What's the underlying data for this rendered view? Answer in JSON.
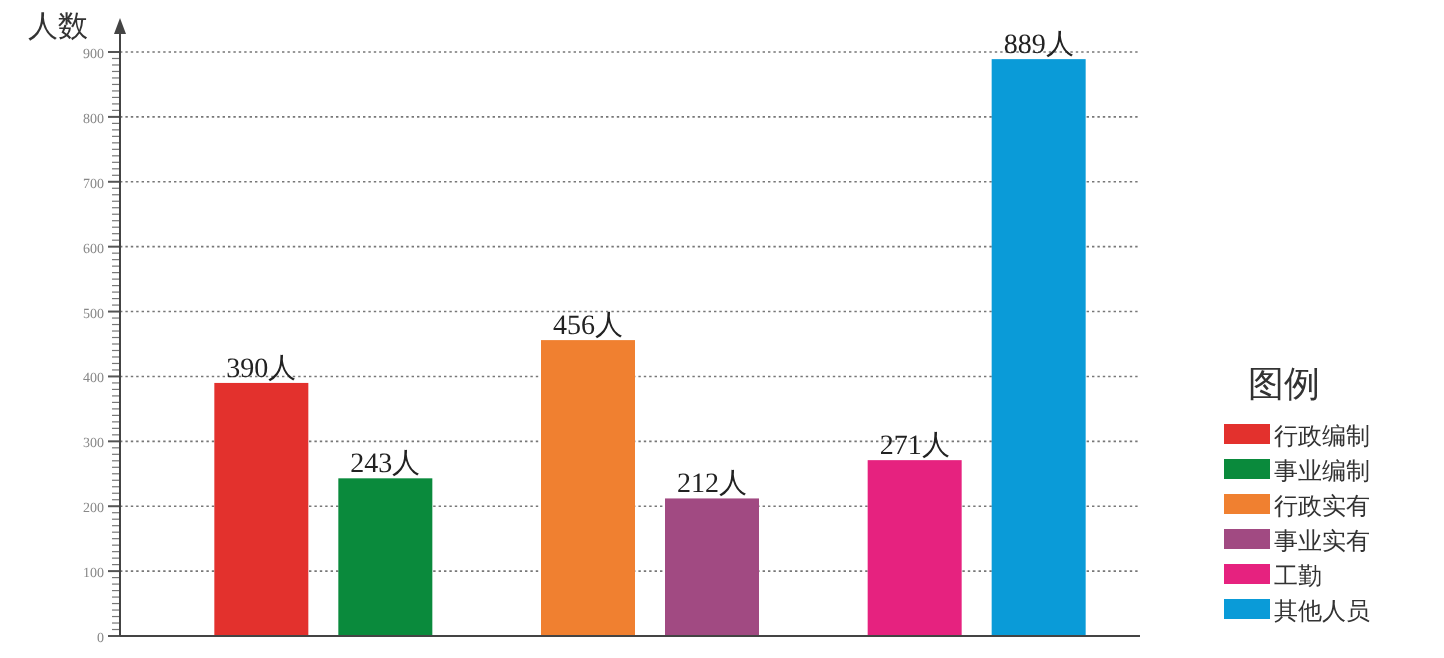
{
  "chart_data": {
    "type": "bar",
    "ylabel": "人数",
    "legend_title": "图例",
    "legend": "right",
    "grid": "y",
    "categories": [
      null,
      null,
      null
    ],
    "ylim": [
      0,
      900
    ],
    "yticks": [
      0,
      {
        "value": 10,
        "label": null
      },
      {
        "value": 20,
        "label": null
      },
      {
        "value": 30,
        "label": null
      },
      {
        "value": 40,
        "label": null
      },
      {
        "value": 50,
        "label": null
      },
      {
        "value": 60,
        "label": null
      },
      {
        "value": 70,
        "label": null
      },
      {
        "value": 80,
        "label": null
      },
      {
        "value": 90,
        "label": null
      },
      100,
      {
        "value": 110,
        "label": null
      },
      {
        "value": 120,
        "label": null
      },
      {
        "value": 130,
        "label": null
      },
      {
        "value": 140,
        "label": null
      },
      {
        "value": 150,
        "label": null
      },
      {
        "value": 160,
        "label": null
      },
      {
        "value": 170,
        "label": null
      },
      {
        "value": 180,
        "label": null
      },
      {
        "value": 190,
        "label": null
      },
      200,
      {
        "value": 210,
        "label": null
      },
      {
        "value": 220,
        "label": null
      },
      {
        "value": 230,
        "label": null
      },
      {
        "value": 240,
        "label": null
      },
      {
        "value": 250,
        "label": null
      },
      {
        "value": 260,
        "label": null
      },
      {
        "value": 270,
        "label": null
      },
      {
        "value": 280,
        "label": null
      },
      {
        "value": 290,
        "label": null
      },
      300,
      {
        "value": 310,
        "label": null
      },
      {
        "value": 320,
        "label": null
      },
      {
        "value": 330,
        "label": null
      },
      {
        "value": 340,
        "label": null
      },
      {
        "value": 350,
        "label": null
      },
      {
        "value": 360,
        "label": null
      },
      {
        "value": 370,
        "label": null
      },
      {
        "value": 380,
        "label": null
      },
      {
        "value": 390,
        "label": null
      },
      400,
      {
        "value": 410,
        "label": null
      },
      {
        "value": 420,
        "label": null
      },
      {
        "value": 430,
        "label": null
      },
      {
        "value": 440,
        "label": null
      },
      {
        "value": 450,
        "label": null
      },
      {
        "value": 460,
        "label": null
      },
      {
        "value": 470,
        "label": null
      },
      {
        "value": 480,
        "label": null
      },
      {
        "value": 490,
        "label": null
      },
      500,
      {
        "value": 510,
        "label": null
      },
      {
        "value": 520,
        "label": null
      },
      {
        "value": 530,
        "label": null
      },
      {
        "value": 540,
        "label": null
      },
      {
        "value": 550,
        "label": null
      },
      {
        "value": 560,
        "label": null
      },
      {
        "value": 570,
        "label": null
      },
      {
        "value": 580,
        "label": null
      },
      {
        "value": 590,
        "label": null
      },
      600,
      {
        "value": 610,
        "label": null
      },
      {
        "value": 620,
        "label": null
      },
      {
        "value": 630,
        "label": null
      },
      {
        "value": 640,
        "label": null
      },
      {
        "value": 650,
        "label": null
      },
      {
        "value": 660,
        "label": null
      },
      {
        "value": 670,
        "label": null
      },
      {
        "value": 680,
        "label": null
      },
      {
        "value": 690,
        "label": null
      },
      700,
      {
        "value": 710,
        "label": null
      },
      {
        "value": 720,
        "label": null
      },
      {
        "value": 730,
        "label": null
      },
      {
        "value": 740,
        "label": null
      },
      {
        "value": 750,
        "label": null
      },
      {
        "value": 760,
        "label": null
      },
      {
        "value": 770,
        "label": null
      },
      {
        "value": 780,
        "label": null
      },
      {
        "value": 790,
        "label": null
      },
      800,
      {
        "value": 810,
        "label": null
      },
      {
        "value": 820,
        "label": null
      },
      {
        "value": 830,
        "label": null
      },
      {
        "value": 840,
        "label": null
      },
      {
        "value": 850,
        "label": null
      },
      {
        "value": 860,
        "label": null
      },
      {
        "value": 870,
        "label": null
      },
      {
        "value": 880,
        "label": null
      },
      {
        "value": 890,
        "label": null
      },
      900
    ],
    "series": [
      {
        "name": "行政编制",
        "color": "#e3312d",
        "values": [
          390,
          null,
          null
        ],
        "value_labels": [
          "390人",
          null,
          null
        ]
      },
      {
        "name": "事业编制",
        "color": "#0a8a3c",
        "values": [
          243,
          null,
          null
        ],
        "value_labels": [
          "243人",
          null,
          null
        ]
      },
      {
        "name": "行政实有",
        "color": "#f08030",
        "values": [
          null,
          456,
          null
        ],
        "value_labels": [
          null,
          "456人",
          null
        ]
      },
      {
        "name": "事业实有",
        "color": "#a14a82",
        "values": [
          null,
          212,
          null
        ],
        "value_labels": [
          null,
          "212人",
          null
        ]
      },
      {
        "name": "工勤",
        "color": "#e6227f",
        "values": [
          null,
          null,
          271
        ],
        "value_labels": [
          null,
          null,
          "271人"
        ]
      },
      {
        "name": "其他人员",
        "color": "#0a9bd8",
        "values": [
          null,
          null,
          889
        ],
        "value_labels": [
          null,
          null,
          "889人"
        ]
      }
    ]
  }
}
